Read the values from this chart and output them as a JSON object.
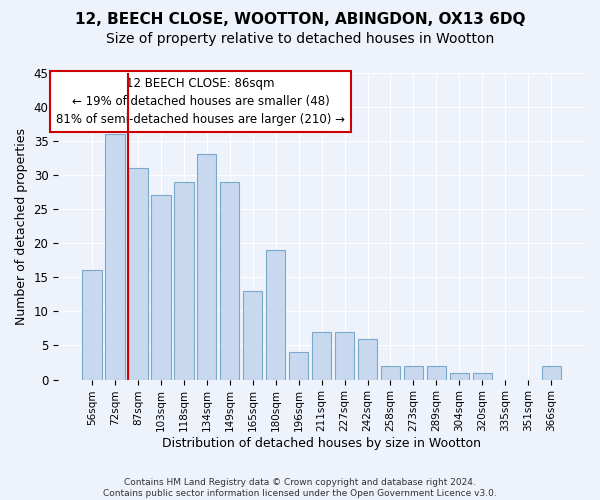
{
  "title1": "12, BEECH CLOSE, WOOTTON, ABINGDON, OX13 6DQ",
  "title2": "Size of property relative to detached houses in Wootton",
  "xlabel": "Distribution of detached houses by size in Wootton",
  "ylabel": "Number of detached properties",
  "footnote": "Contains HM Land Registry data © Crown copyright and database right 2024.\nContains public sector information licensed under the Open Government Licence v3.0.",
  "categories": [
    "56sqm",
    "72sqm",
    "87sqm",
    "103sqm",
    "118sqm",
    "134sqm",
    "149sqm",
    "165sqm",
    "180sqm",
    "196sqm",
    "211sqm",
    "227sqm",
    "242sqm",
    "258sqm",
    "273sqm",
    "289sqm",
    "304sqm",
    "320sqm",
    "335sqm",
    "351sqm",
    "366sqm"
  ],
  "values": [
    16,
    36,
    31,
    27,
    29,
    33,
    29,
    13,
    19,
    4,
    7,
    7,
    6,
    2,
    2,
    2,
    1,
    1,
    0,
    0,
    2
  ],
  "bar_color": "#c8d8ee",
  "bar_edge_color": "#7aaacb",
  "highlight_color": "#cc0000",
  "annotation_text": "12 BEECH CLOSE: 86sqm\n← 19% of detached houses are smaller (48)\n81% of semi-detached houses are larger (210) →",
  "annotation_box_color": "#ffffff",
  "annotation_box_edge": "#cc0000",
  "ylim": [
    0,
    45
  ],
  "background_color": "#eef2fa",
  "grid_color": "#ffffff",
  "title1_fontsize": 11,
  "title2_fontsize": 10,
  "xlabel_fontsize": 9,
  "ylabel_fontsize": 9,
  "annot_fontsize": 8.5
}
